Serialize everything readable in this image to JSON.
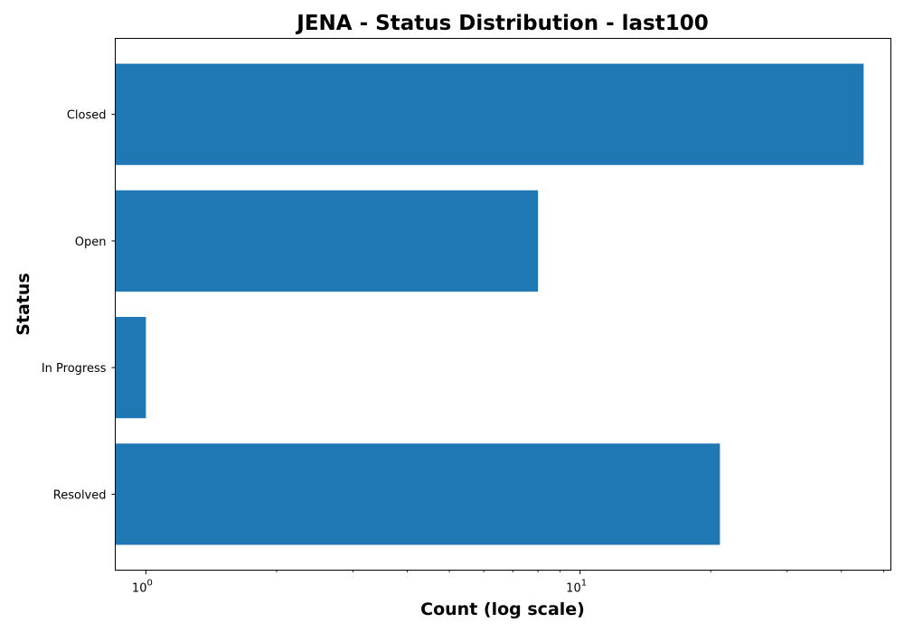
{
  "chart_data": {
    "type": "bar",
    "orientation": "horizontal",
    "title": "JENA - Status Distribution - last100",
    "xlabel": "Count (log scale)",
    "ylabel": "Status",
    "xscale": "log",
    "xlim": [
      0.85,
      52
    ],
    "categories": [
      "Closed",
      "Open",
      "In Progress",
      "Resolved"
    ],
    "values": [
      45,
      8,
      1,
      21
    ],
    "x_ticks": [
      {
        "value": 1,
        "base": "10",
        "exp": "0"
      },
      {
        "value": 10,
        "base": "10",
        "exp": "1"
      }
    ],
    "minor_ticks": [
      2,
      3,
      4,
      5,
      6,
      7,
      8,
      9,
      20,
      30,
      40,
      50
    ],
    "bar_color": "#1f77b4",
    "grid": false
  }
}
